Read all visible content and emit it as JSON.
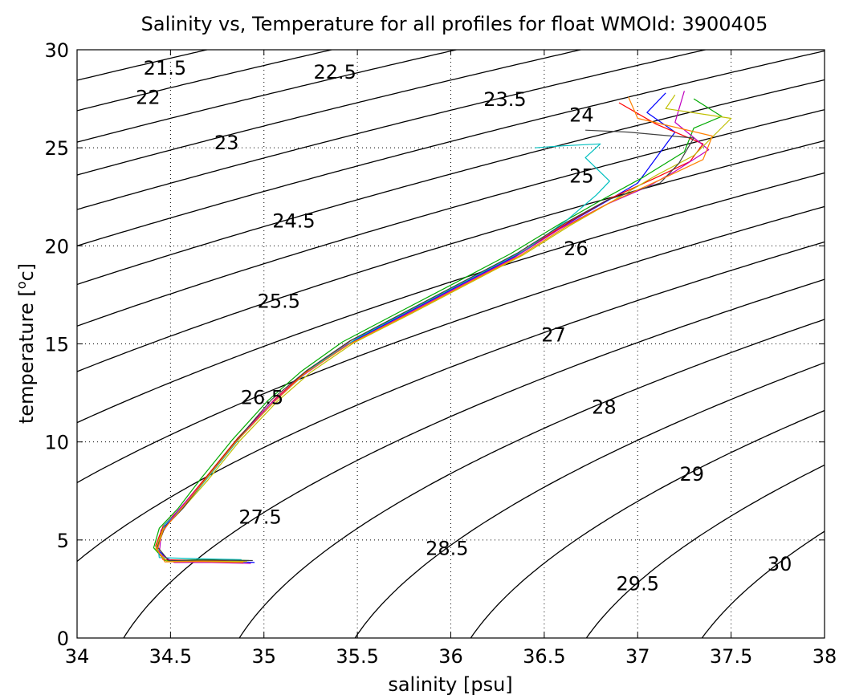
{
  "chart_data": {
    "type": "line",
    "title": "Salinity vs, Temperature for all profiles for float WMOId: 3900405",
    "xlabel": "salinity [psu]",
    "ylabel_main": "temperature [",
    "ylabel_sup": "o",
    "ylabel_end": "c]",
    "xlim": [
      34,
      38
    ],
    "ylim": [
      0,
      30
    ],
    "grid": true,
    "x_ticks": [
      "34",
      "34.5",
      "35",
      "35.5",
      "36",
      "36.5",
      "37",
      "37.5",
      "38"
    ],
    "y_ticks": [
      "0",
      "5",
      "10",
      "15",
      "20",
      "25",
      "30"
    ],
    "density_contours": {
      "levels": [
        21.5,
        22,
        22.5,
        23,
        23.5,
        24,
        24.5,
        25,
        25.5,
        26,
        26.5,
        27,
        27.5,
        28,
        28.5,
        29,
        29.5,
        30
      ],
      "labels": [
        {
          "text": "21.5",
          "s": 34.47,
          "t": 29.1
        },
        {
          "text": "22",
          "s": 34.38,
          "t": 27.6
        },
        {
          "text": "22.5",
          "s": 35.38,
          "t": 28.9
        },
        {
          "text": "23",
          "s": 34.8,
          "t": 25.3
        },
        {
          "text": "23.5",
          "s": 36.29,
          "t": 27.5
        },
        {
          "text": "24",
          "s": 36.7,
          "t": 26.7
        },
        {
          "text": "24.5",
          "s": 35.16,
          "t": 21.3
        },
        {
          "text": "25",
          "s": 36.7,
          "t": 23.6
        },
        {
          "text": "25.5",
          "s": 35.08,
          "t": 17.2
        },
        {
          "text": "26",
          "s": 36.67,
          "t": 19.9
        },
        {
          "text": "26.5",
          "s": 34.99,
          "t": 12.3
        },
        {
          "text": "27",
          "s": 36.55,
          "t": 15.5
        },
        {
          "text": "27.5",
          "s": 34.98,
          "t": 6.2
        },
        {
          "text": "28",
          "s": 36.82,
          "t": 11.8
        },
        {
          "text": "28.5",
          "s": 35.98,
          "t": 4.6
        },
        {
          "text": "29",
          "s": 37.29,
          "t": 8.4
        },
        {
          "text": "29.5",
          "s": 37.0,
          "t": 2.8
        },
        {
          "text": "30",
          "s": 37.76,
          "t": 3.8
        }
      ]
    },
    "series": [
      {
        "color": "#0000ff",
        "values": [
          [
            34.95,
            3.85
          ],
          [
            34.7,
            3.95
          ],
          [
            34.5,
            3.9
          ],
          [
            34.43,
            4.5
          ],
          [
            34.45,
            5.5
          ],
          [
            34.55,
            6.5
          ],
          [
            34.68,
            8
          ],
          [
            34.85,
            10
          ],
          [
            35.05,
            12
          ],
          [
            35.22,
            13.5
          ],
          [
            35.45,
            15
          ],
          [
            35.75,
            16.5
          ],
          [
            36.05,
            18
          ],
          [
            36.35,
            19.5
          ],
          [
            36.6,
            21
          ],
          [
            36.82,
            22.2
          ],
          [
            37.0,
            23.2
          ],
          [
            37.1,
            24.5
          ],
          [
            37.2,
            25.8
          ],
          [
            37.05,
            26.8
          ],
          [
            37.15,
            27.8
          ]
        ]
      },
      {
        "color": "#00aa00",
        "values": [
          [
            34.92,
            3.95
          ],
          [
            34.68,
            4.0
          ],
          [
            34.47,
            3.95
          ],
          [
            34.41,
            4.6
          ],
          [
            34.44,
            5.6
          ],
          [
            34.54,
            6.6
          ],
          [
            34.66,
            8.1
          ],
          [
            34.83,
            10.1
          ],
          [
            35.02,
            12.1
          ],
          [
            35.2,
            13.6
          ],
          [
            35.42,
            15.1
          ],
          [
            35.72,
            16.6
          ],
          [
            36.02,
            18.1
          ],
          [
            36.32,
            19.6
          ],
          [
            36.58,
            21.1
          ],
          [
            36.8,
            22.3
          ],
          [
            37.03,
            23.5
          ],
          [
            37.25,
            24.8
          ],
          [
            37.3,
            26.0
          ],
          [
            37.45,
            26.6
          ],
          [
            37.3,
            27.5
          ]
        ]
      },
      {
        "color": "#ff0000",
        "values": [
          [
            34.9,
            3.9
          ],
          [
            34.65,
            3.95
          ],
          [
            34.46,
            4.0
          ],
          [
            34.42,
            4.7
          ],
          [
            34.46,
            5.7
          ],
          [
            34.56,
            6.7
          ],
          [
            34.69,
            8.2
          ],
          [
            34.86,
            10.2
          ],
          [
            35.06,
            12.2
          ],
          [
            35.24,
            13.7
          ],
          [
            35.47,
            15.2
          ],
          [
            35.78,
            16.7
          ],
          [
            36.08,
            18.2
          ],
          [
            36.38,
            19.7
          ],
          [
            36.63,
            21.2
          ],
          [
            36.85,
            22.4
          ],
          [
            37.08,
            23.4
          ],
          [
            37.28,
            24.3
          ],
          [
            37.35,
            25.2
          ],
          [
            37.1,
            26.2
          ],
          [
            36.9,
            27.3
          ]
        ]
      },
      {
        "color": "#00bfbf",
        "values": [
          [
            34.88,
            4.0
          ],
          [
            34.62,
            4.05
          ],
          [
            34.44,
            4.1
          ],
          [
            34.43,
            4.8
          ],
          [
            34.47,
            5.8
          ],
          [
            34.58,
            6.8
          ],
          [
            34.71,
            8.3
          ],
          [
            34.88,
            10.3
          ],
          [
            35.08,
            12.3
          ],
          [
            35.26,
            13.8
          ],
          [
            35.5,
            15.3
          ],
          [
            35.8,
            16.8
          ],
          [
            36.1,
            18.3
          ],
          [
            36.4,
            19.8
          ],
          [
            36.62,
            21.3
          ],
          [
            36.78,
            22.6
          ],
          [
            36.85,
            23.3
          ],
          [
            36.72,
            24.5
          ],
          [
            36.8,
            25.2
          ],
          [
            36.6,
            25.1
          ],
          [
            36.45,
            25.0
          ]
        ]
      },
      {
        "color": "#bf00bf",
        "values": [
          [
            34.93,
            3.8
          ],
          [
            34.72,
            3.85
          ],
          [
            34.52,
            3.85
          ],
          [
            34.44,
            4.3
          ],
          [
            34.45,
            5.3
          ],
          [
            34.53,
            6.4
          ],
          [
            34.67,
            7.9
          ],
          [
            34.84,
            9.9
          ],
          [
            35.03,
            11.9
          ],
          [
            35.21,
            13.4
          ],
          [
            35.44,
            14.9
          ],
          [
            35.74,
            16.4
          ],
          [
            36.04,
            17.9
          ],
          [
            36.34,
            19.4
          ],
          [
            36.59,
            20.9
          ],
          [
            36.83,
            22.1
          ],
          [
            37.05,
            23.0
          ],
          [
            37.2,
            23.8
          ],
          [
            37.38,
            24.9
          ],
          [
            37.2,
            26.3
          ],
          [
            37.25,
            27.9
          ]
        ]
      },
      {
        "color": "#bfbf00",
        "values": [
          [
            34.91,
            3.9
          ],
          [
            34.67,
            3.92
          ],
          [
            34.48,
            3.92
          ],
          [
            34.42,
            4.55
          ],
          [
            34.46,
            5.55
          ],
          [
            34.56,
            6.55
          ],
          [
            34.7,
            8.05
          ],
          [
            34.87,
            10.05
          ],
          [
            35.07,
            12.05
          ],
          [
            35.25,
            13.55
          ],
          [
            35.48,
            15.05
          ],
          [
            35.79,
            16.55
          ],
          [
            36.09,
            18.05
          ],
          [
            36.39,
            19.55
          ],
          [
            36.64,
            21.05
          ],
          [
            36.86,
            22.25
          ],
          [
            37.1,
            23.6
          ],
          [
            37.3,
            24.6
          ],
          [
            37.5,
            26.5
          ],
          [
            37.15,
            27.0
          ],
          [
            37.2,
            27.7
          ]
        ]
      },
      {
        "color": "#404040",
        "values": [
          [
            34.94,
            3.95
          ],
          [
            34.69,
            3.98
          ],
          [
            34.49,
            3.95
          ],
          [
            34.43,
            4.65
          ],
          [
            34.47,
            5.65
          ],
          [
            34.57,
            6.65
          ],
          [
            34.69,
            8.15
          ],
          [
            34.86,
            10.15
          ],
          [
            35.04,
            12.15
          ],
          [
            35.23,
            13.65
          ],
          [
            35.46,
            15.15
          ],
          [
            35.76,
            16.65
          ],
          [
            36.06,
            18.15
          ],
          [
            36.36,
            19.65
          ],
          [
            36.61,
            21.15
          ],
          [
            36.84,
            22.35
          ],
          [
            37.12,
            23.2
          ],
          [
            37.22,
            24.2
          ],
          [
            37.3,
            25.5
          ],
          [
            36.95,
            25.8
          ],
          [
            36.72,
            25.9
          ]
        ]
      },
      {
        "color": "#ff8000",
        "values": [
          [
            34.89,
            3.85
          ],
          [
            34.66,
            3.9
          ],
          [
            34.47,
            3.88
          ],
          [
            34.43,
            4.5
          ],
          [
            34.46,
            5.5
          ],
          [
            34.55,
            6.5
          ],
          [
            34.68,
            8.0
          ],
          [
            34.85,
            10.0
          ],
          [
            35.05,
            12.0
          ],
          [
            35.22,
            13.5
          ],
          [
            35.46,
            15.0
          ],
          [
            35.77,
            16.5
          ],
          [
            36.07,
            18.0
          ],
          [
            36.37,
            19.5
          ],
          [
            36.62,
            21.0
          ],
          [
            36.85,
            22.2
          ],
          [
            37.15,
            23.5
          ],
          [
            37.35,
            24.4
          ],
          [
            37.4,
            25.6
          ],
          [
            37.0,
            26.5
          ],
          [
            36.95,
            27.6
          ]
        ]
      }
    ]
  }
}
